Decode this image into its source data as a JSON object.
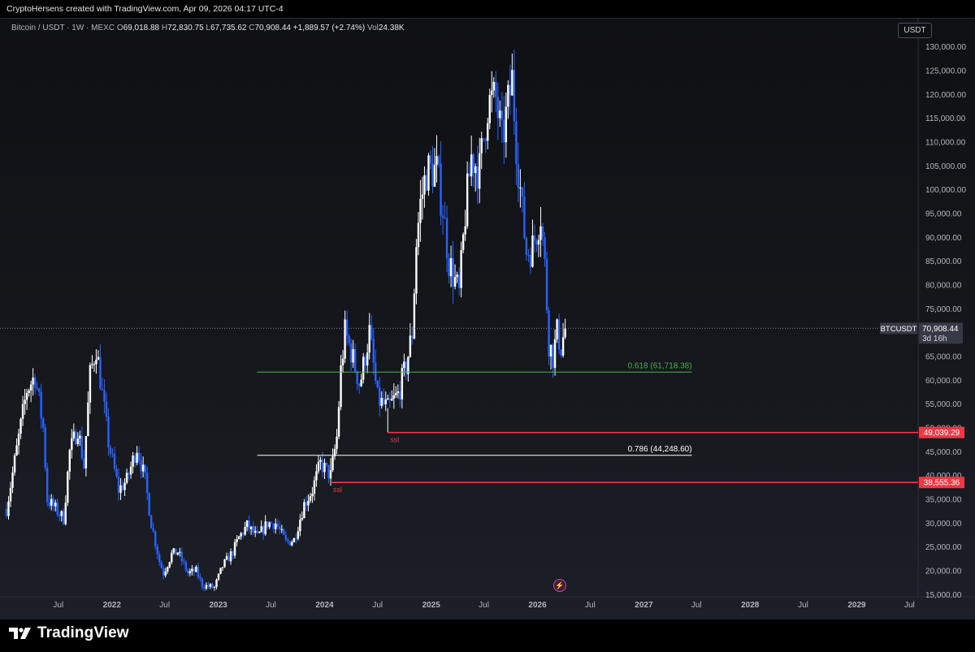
{
  "header": {
    "caption": "CryptoHersens created with TradingView.com, Apr 09, 2026 04:17 UTC-4"
  },
  "legend": {
    "symbol": "Bitcoin / USDT · 1W · MEXC",
    "open_label": "O",
    "open": "69,018.88",
    "high_label": "H",
    "high": "72,830.75",
    "low_label": "L",
    "low": "67,735.62",
    "close_label": "C",
    "close": "70,908.44",
    "change": "+1,889.57 (+2.74%)",
    "vol_label": "Vol",
    "vol": "24.38K"
  },
  "currency": "USDT",
  "footer": {
    "brand": "TradingView",
    "logo_icon": "tradingview-logo-icon"
  },
  "colors": {
    "up": "#ffffff",
    "down": "#2962ff",
    "fib_green": "#4caf50",
    "fib_white": "#ffffff",
    "ssl": "#f23645",
    "badge_bg": "#363a45"
  },
  "chart_data": {
    "type": "candlestick",
    "symbol": "BTCUSDT",
    "interval": "1W",
    "ylim": [
      12000,
      133000
    ],
    "y_ticks": [
      15000,
      20000,
      25000,
      30000,
      35000,
      40000,
      45000,
      50000,
      55000,
      60000,
      65000,
      70000,
      75000,
      80000,
      85000,
      90000,
      95000,
      100000,
      105000,
      110000,
      115000,
      120000,
      125000,
      130000
    ],
    "y_tick_labels": [
      "15,000.00",
      "20,000.00",
      "25,000.00",
      "30,000.00",
      "35,000.00",
      "40,000.00",
      "45,000.00",
      "50,000.00",
      "55,000.00",
      "60,000.00",
      "65,000.00",
      "70,000.00",
      "75,000.00",
      "80,000.00",
      "85,000.00",
      "90,000.00",
      "95,000.00",
      "100,000.00",
      "105,000.00",
      "110,000.00",
      "115,000.00",
      "120,000.00",
      "125,000.00",
      "130,000.00"
    ],
    "x_ticks": [
      {
        "label": "Jul",
        "date": "2021-07-01",
        "bold": false
      },
      {
        "label": "2022",
        "date": "2022-01-01",
        "bold": true
      },
      {
        "label": "Jul",
        "date": "2022-07-01",
        "bold": false
      },
      {
        "label": "2023",
        "date": "2023-01-01",
        "bold": true
      },
      {
        "label": "Jul",
        "date": "2023-07-01",
        "bold": false
      },
      {
        "label": "2024",
        "date": "2024-01-01",
        "bold": true
      },
      {
        "label": "Jul",
        "date": "2024-07-01",
        "bold": false
      },
      {
        "label": "2025",
        "date": "2025-01-01",
        "bold": true
      },
      {
        "label": "Jul",
        "date": "2025-07-01",
        "bold": false
      },
      {
        "label": "2026",
        "date": "2026-01-01",
        "bold": true
      },
      {
        "label": "Jul",
        "date": "2026-07-01",
        "bold": false
      },
      {
        "label": "2027",
        "date": "2027-01-01",
        "bold": true
      },
      {
        "label": "Jul",
        "date": "2027-07-01",
        "bold": false
      },
      {
        "label": "2028",
        "date": "2028-01-01",
        "bold": true
      },
      {
        "label": "Jul",
        "date": "2028-07-01",
        "bold": false
      },
      {
        "label": "2029",
        "date": "2029-01-01",
        "bold": true
      },
      {
        "label": "Jul",
        "date": "2029-07-01",
        "bold": false
      }
    ],
    "price_path": [
      [
        "2021-01-04",
        33000
      ],
      [
        "2021-02-15",
        48000
      ],
      [
        "2021-03-15",
        58000
      ],
      [
        "2021-04-12",
        61000
      ],
      [
        "2021-05-10",
        50000
      ],
      [
        "2021-05-24",
        35000
      ],
      [
        "2021-06-21",
        33000
      ],
      [
        "2021-07-19",
        31000
      ],
      [
        "2021-08-09",
        45000
      ],
      [
        "2021-09-06",
        50000
      ],
      [
        "2021-09-27",
        42000
      ],
      [
        "2021-10-18",
        61000
      ],
      [
        "2021-11-08",
        67000
      ],
      [
        "2021-11-29",
        57000
      ],
      [
        "2021-12-20",
        47000
      ],
      [
        "2022-01-24",
        37000
      ],
      [
        "2022-02-21",
        39000
      ],
      [
        "2022-03-28",
        46000
      ],
      [
        "2022-04-25",
        39000
      ],
      [
        "2022-05-16",
        30000
      ],
      [
        "2022-06-13",
        22000
      ],
      [
        "2022-06-27",
        19500
      ],
      [
        "2022-07-25",
        23500
      ],
      [
        "2022-08-15",
        24000
      ],
      [
        "2022-09-19",
        19500
      ],
      [
        "2022-10-17",
        20000
      ],
      [
        "2022-11-07",
        17000
      ],
      [
        "2022-12-19",
        16500
      ],
      [
        "2023-01-16",
        21000
      ],
      [
        "2023-02-20",
        24000
      ],
      [
        "2023-03-13",
        27000
      ],
      [
        "2023-04-10",
        29500
      ],
      [
        "2023-05-15",
        27000
      ],
      [
        "2023-06-19",
        30000
      ],
      [
        "2023-07-17",
        30000
      ],
      [
        "2023-08-21",
        26000
      ],
      [
        "2023-09-18",
        26500
      ],
      [
        "2023-10-23",
        34000
      ],
      [
        "2023-11-20",
        37000
      ],
      [
        "2023-12-18",
        42500
      ],
      [
        "2024-01-22",
        40000
      ],
      [
        "2024-02-12",
        48000
      ],
      [
        "2024-02-26",
        62000
      ],
      [
        "2024-03-11",
        70000
      ],
      [
        "2024-04-01",
        66000
      ],
      [
        "2024-05-01",
        59000
      ],
      [
        "2024-06-03",
        70000
      ],
      [
        "2024-07-01",
        56000
      ],
      [
        "2024-08-05",
        54000
      ],
      [
        "2024-09-09",
        57000
      ],
      [
        "2024-10-07",
        63000
      ],
      [
        "2024-10-28",
        70000
      ],
      [
        "2024-11-11",
        89000
      ],
      [
        "2024-11-25",
        97000
      ],
      [
        "2024-12-16",
        104000
      ],
      [
        "2025-01-20",
        104000
      ],
      [
        "2025-02-10",
        96000
      ],
      [
        "2025-03-03",
        85000
      ],
      [
        "2025-04-07",
        78000
      ],
      [
        "2025-04-28",
        95000
      ],
      [
        "2025-05-19",
        107000
      ],
      [
        "2025-06-16",
        104000
      ],
      [
        "2025-07-14",
        118000
      ],
      [
        "2025-08-11",
        119000
      ],
      [
        "2025-09-01",
        110000
      ],
      [
        "2025-10-06",
        123000
      ],
      [
        "2025-10-20",
        110000
      ],
      [
        "2025-11-10",
        95000
      ],
      [
        "2025-11-24",
        87000
      ],
      [
        "2025-12-15",
        88000
      ],
      [
        "2026-01-12",
        95000
      ],
      [
        "2026-01-26",
        84000
      ],
      [
        "2026-02-09",
        68000
      ],
      [
        "2026-02-23",
        65000
      ],
      [
        "2026-03-09",
        70000
      ],
      [
        "2026-03-23",
        67000
      ],
      [
        "2026-04-06",
        70908
      ]
    ],
    "last_price": {
      "symbol_label": "BTCUSDT",
      "value": 70908.44,
      "value_label": "70,908.44",
      "countdown": "3d 16h"
    },
    "levels": [
      {
        "kind": "fib",
        "label": "0.618 (61,718.38)",
        "price": 61718.38,
        "start": "2023-05-15",
        "end": "2027-06-15",
        "color": "#4caf50"
      },
      {
        "kind": "fib",
        "label": "0.786 (44,248.60)",
        "price": 44248.6,
        "start": "2023-05-15",
        "end": "2027-06-15",
        "color": "#ffffff"
      },
      {
        "kind": "ssl",
        "label": "ssl",
        "price": 49039.29,
        "price_label": "49,039.29",
        "start": "2024-08-05",
        "color": "#f23645"
      },
      {
        "kind": "ssl",
        "label": "ssl",
        "price": 38555.36,
        "price_label": "38,555.36",
        "start": "2024-01-22",
        "color": "#f23645"
      }
    ]
  }
}
